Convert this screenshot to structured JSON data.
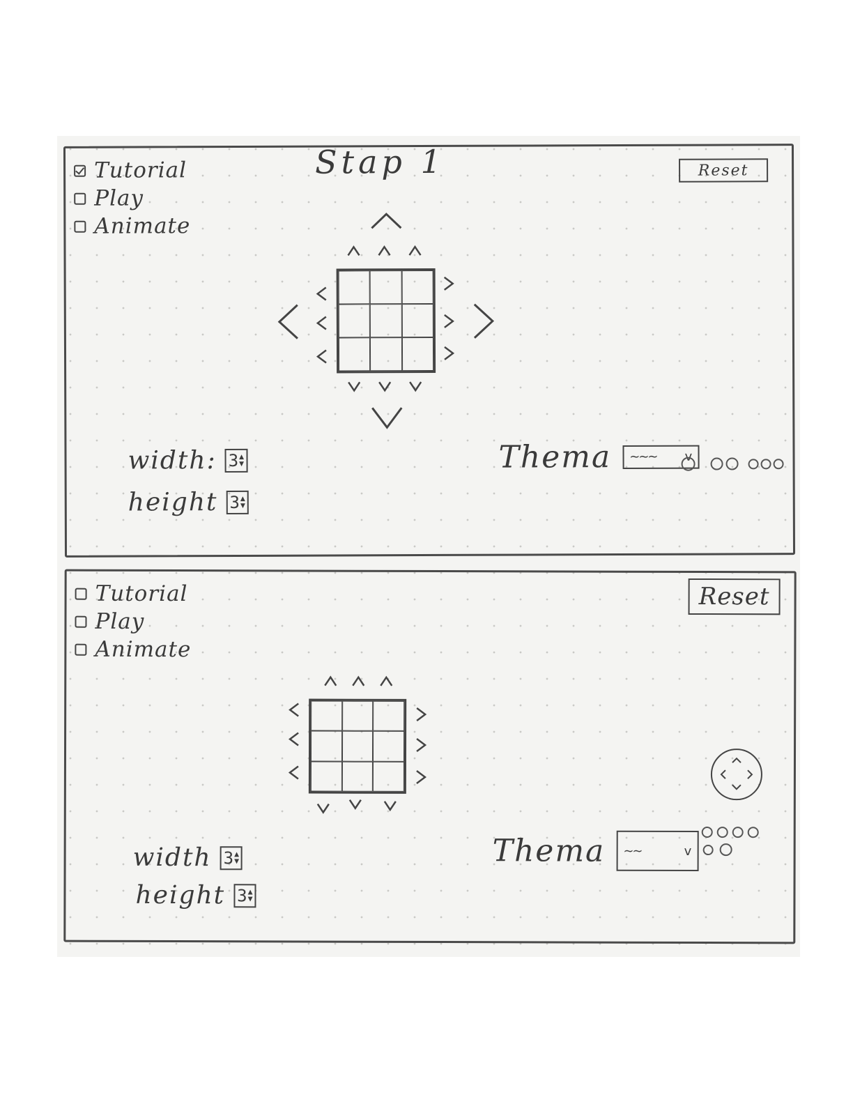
{
  "panels": [
    {
      "title": "Stap 1",
      "modes": [
        {
          "label": "Tutorial",
          "checked": true
        },
        {
          "label": "Play",
          "checked": false
        },
        {
          "label": "Animate",
          "checked": false
        }
      ],
      "reset_label": "Reset",
      "width_label": "width:",
      "width_value": "3",
      "height_label": "height",
      "height_value": "3",
      "theme_label": "Thema",
      "theme_value": "~~~",
      "theme_chevron": "v",
      "swatch_count": 6
    },
    {
      "title": "",
      "modes": [
        {
          "label": "Tutorial",
          "checked": false
        },
        {
          "label": "Play",
          "checked": false
        },
        {
          "label": "Animate",
          "checked": false
        }
      ],
      "reset_label": "Reset",
      "width_label": "width",
      "width_value": "3",
      "height_label": "height",
      "height_value": "3",
      "theme_label": "Thema",
      "theme_value": "~~",
      "theme_chevron": "v",
      "swatch_count": 6
    }
  ],
  "icons": {
    "arrow_up": "chevron-up-icon",
    "arrow_down": "chevron-down-icon",
    "arrow_left": "chevron-left-icon",
    "arrow_right": "chevron-right-icon",
    "joystick": "joystick-icon"
  },
  "colors": {
    "ink": "#444444",
    "paper": "#f4f4f2"
  }
}
